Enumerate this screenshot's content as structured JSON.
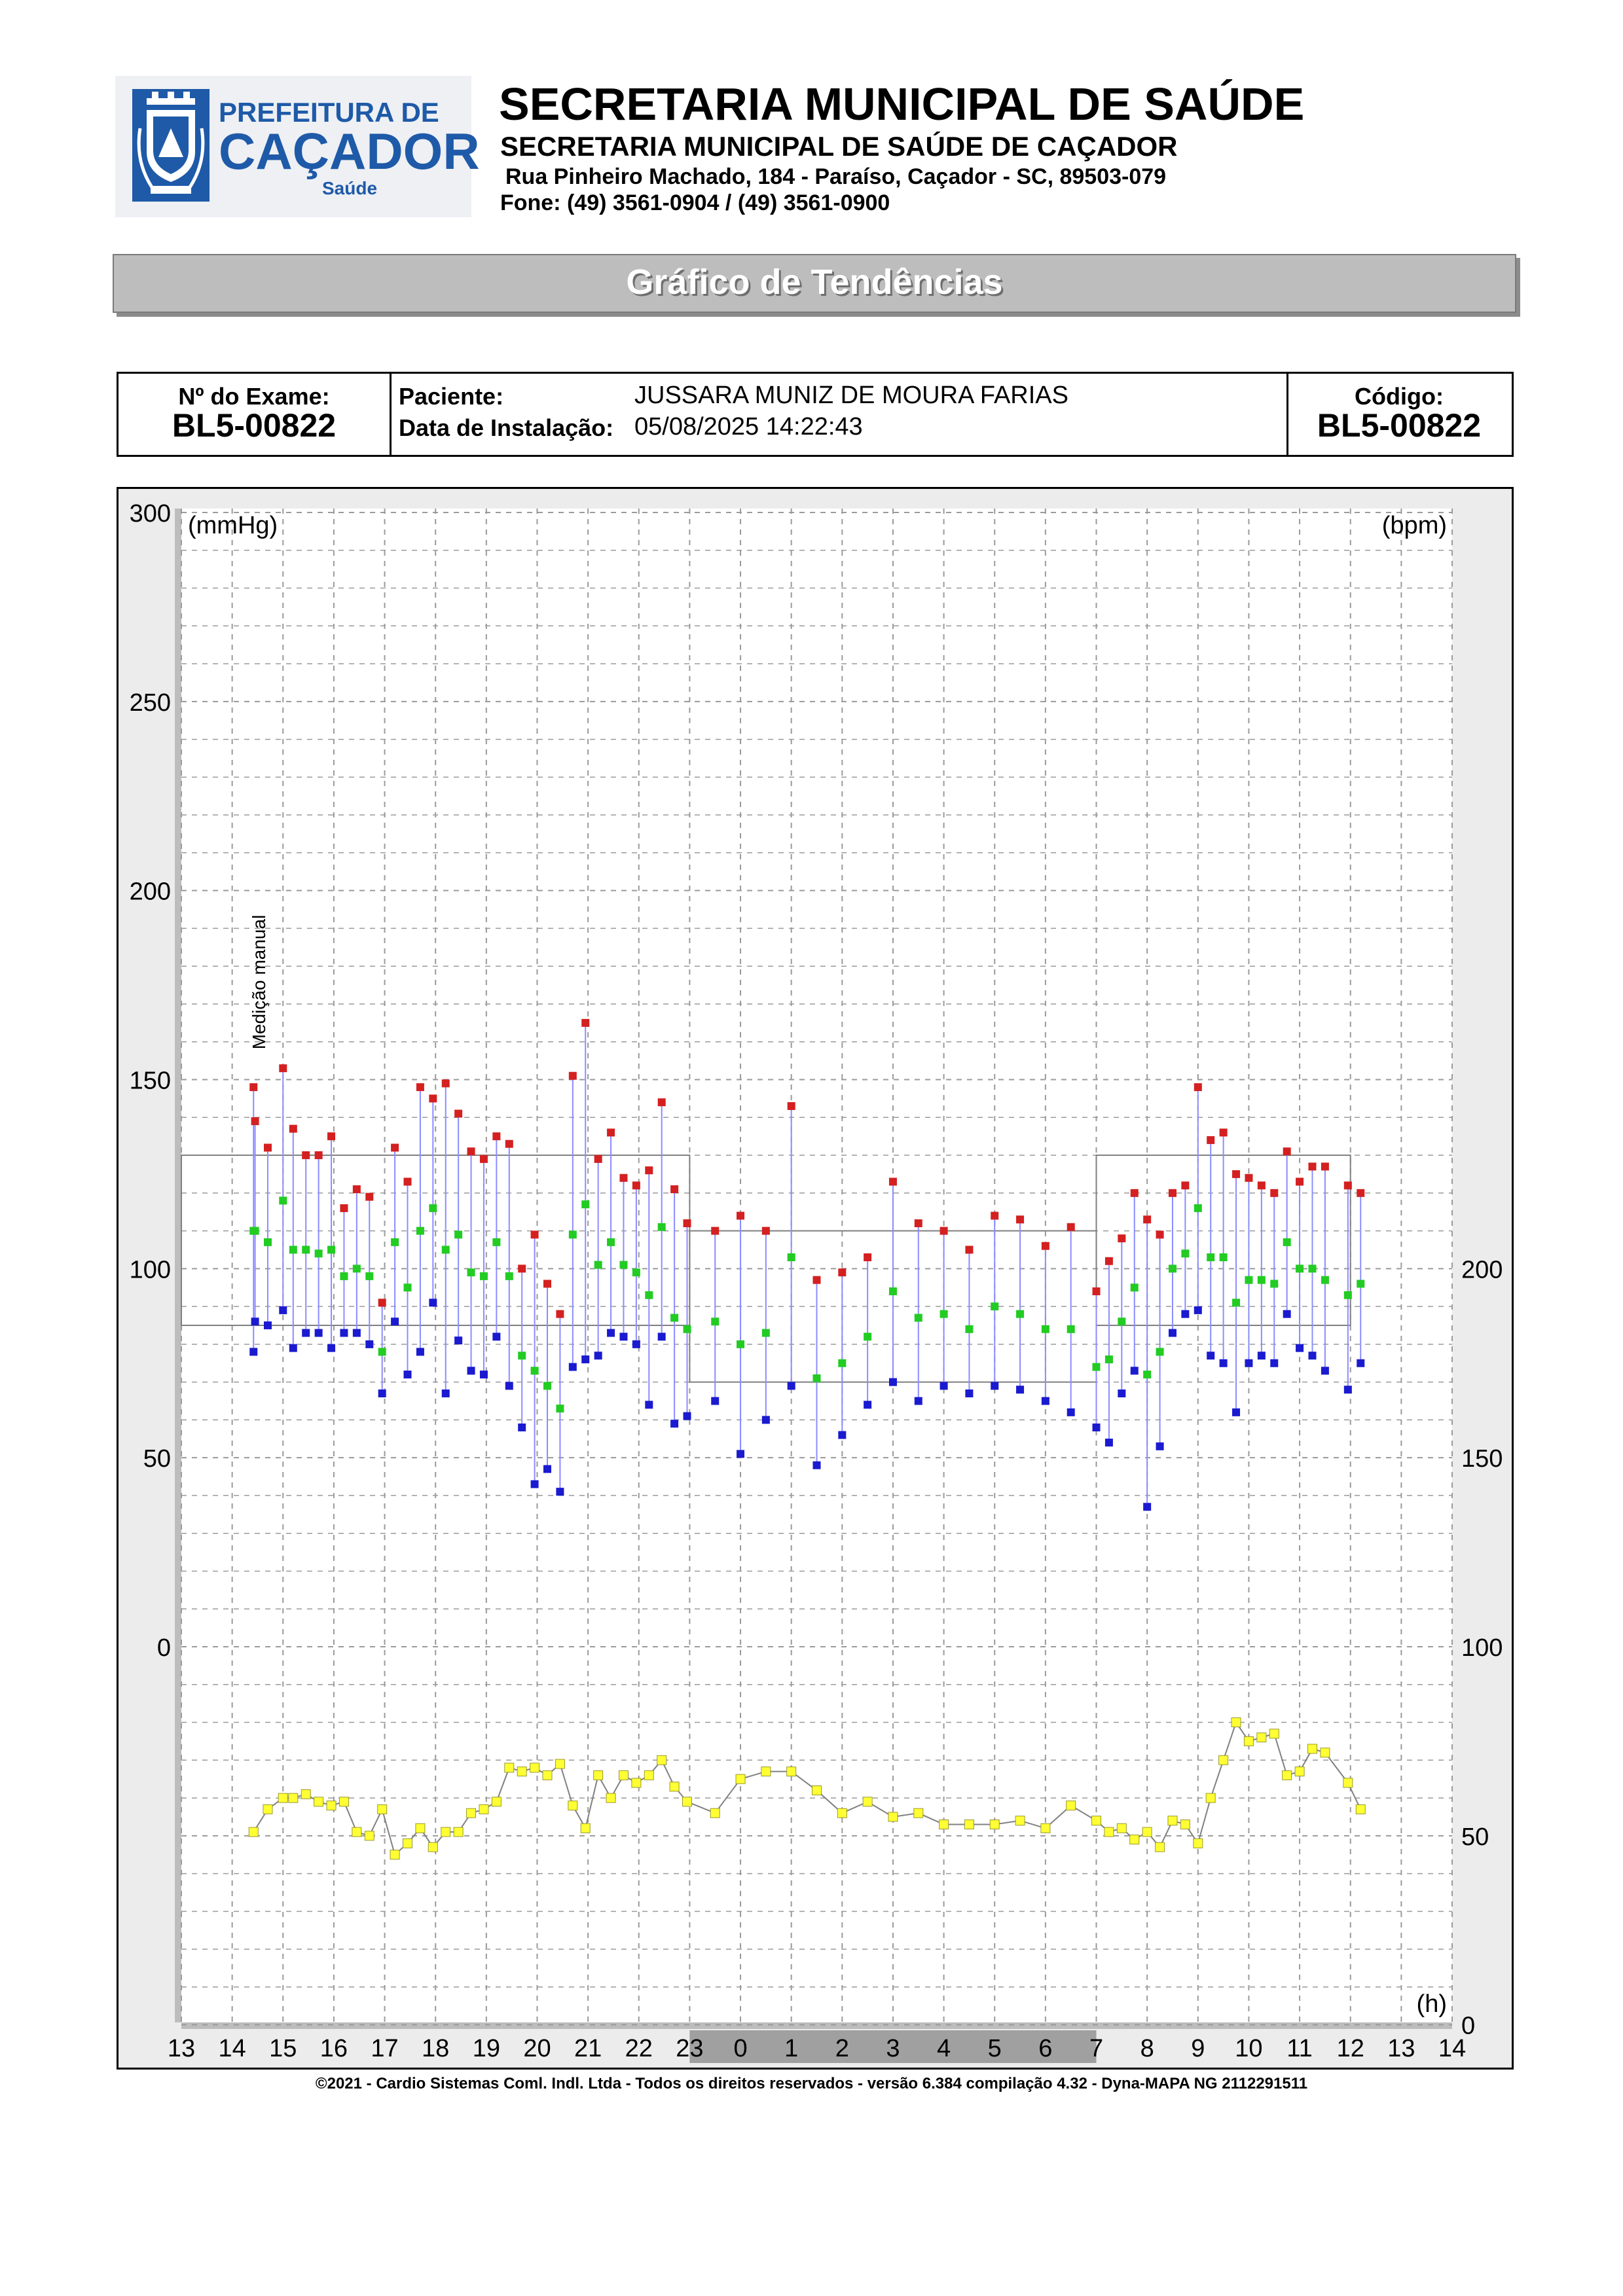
{
  "header": {
    "logo": {
      "line1": "PREFEITURA DE",
      "line2": "CAÇADOR",
      "line3": "Saúde",
      "color": "#1e5aa8"
    },
    "title": "SECRETARIA MUNICIPAL DE SAÚDE",
    "subtitle": "SECRETARIA MUNICIPAL DE SAÚDE DE CAÇADOR",
    "address": "Rua Pinheiro Machado, 184 - Paraíso, Caçador - SC, 89503-079",
    "phone": "Fone: (49) 3561-0904  / (49) 3561-0900"
  },
  "banner": {
    "title": "Gráfico de Tendências"
  },
  "exam": {
    "number_label": "Nº do Exame:",
    "number": "BL5-00822",
    "patient_label": "Paciente:",
    "patient": "JUSSARA MUNIZ DE MOURA FARIAS",
    "install_label": "Data de Instalação:",
    "install_date": "05/08/2025 14:22:43",
    "code_label": "Código:",
    "code": "BL5-00822"
  },
  "footer": {
    "copyright": "©2021 - Cardio Sistemas Coml. Indl. Ltda - Todos os direitos reservados - versão 6.384 compilação 4.32 - Dyna-MAPA NG 2112291511"
  },
  "chart_data": {
    "type": "scatter",
    "left_unit": "(mmHg)",
    "right_unit": "(bpm)",
    "x_unit": "(h)",
    "annotation": "Medição manual",
    "x_ticks": [
      "13",
      "14",
      "15",
      "16",
      "17",
      "18",
      "19",
      "20",
      "21",
      "22",
      "23",
      "0",
      "1",
      "2",
      "3",
      "4",
      "5",
      "6",
      "7",
      "8",
      "9",
      "10",
      "11",
      "12",
      "13",
      "14"
    ],
    "y_left_ticks": [
      0,
      50,
      100,
      150,
      200,
      250,
      300
    ],
    "y_left_range": [
      -100,
      300
    ],
    "y_right_ticks": [
      0,
      50,
      100,
      150,
      200
    ],
    "sleep_period": {
      "from_index": 10,
      "to_index": 18
    },
    "colors": {
      "systolic": "#d42020",
      "mean": "#22cc22",
      "diastolic": "#1a1ad0",
      "hr": "#ffff33",
      "link": "#8c8cff",
      "grid": "#9a9a9a",
      "sleep_bar": "#a0a0a0"
    },
    "limits": [
      {
        "x0": 0,
        "x1": 10,
        "systolic": 130,
        "diastolic": 85
      },
      {
        "x0": 10,
        "x1": 18,
        "systolic": 110,
        "diastolic": 70
      },
      {
        "x0": 18,
        "x1": 23,
        "systolic": 130,
        "diastolic": 85
      }
    ],
    "bp": [
      [
        1.42,
        148,
        110,
        78
      ],
      [
        1.45,
        139,
        110,
        86
      ],
      [
        1.7,
        132,
        107,
        85
      ],
      [
        2.0,
        153,
        118,
        89
      ],
      [
        2.2,
        137,
        105,
        79
      ],
      [
        2.45,
        130,
        105,
        83
      ],
      [
        2.7,
        130,
        104,
        83
      ],
      [
        2.95,
        135,
        105,
        79
      ],
      [
        3.2,
        116,
        98,
        83
      ],
      [
        3.45,
        121,
        100,
        83
      ],
      [
        3.7,
        119,
        98,
        80
      ],
      [
        3.95,
        91,
        78,
        67
      ],
      [
        4.2,
        132,
        107,
        86
      ],
      [
        4.45,
        123,
        95,
        72
      ],
      [
        4.7,
        148,
        110,
        78
      ],
      [
        4.95,
        145,
        116,
        91
      ],
      [
        5.2,
        149,
        105,
        67
      ],
      [
        5.45,
        141,
        109,
        81
      ],
      [
        5.7,
        131,
        99,
        73
      ],
      [
        5.95,
        129,
        98,
        72
      ],
      [
        6.2,
        135,
        107,
        82
      ],
      [
        6.45,
        133,
        98,
        69
      ],
      [
        6.7,
        100,
        77,
        58
      ],
      [
        6.95,
        109,
        73,
        43
      ],
      [
        7.2,
        96,
        69,
        47
      ],
      [
        7.45,
        88,
        63,
        41
      ],
      [
        7.7,
        151,
        109,
        74
      ],
      [
        7.95,
        165,
        117,
        76
      ],
      [
        8.2,
        129,
        101,
        77
      ],
      [
        8.45,
        136,
        107,
        83
      ],
      [
        8.7,
        124,
        101,
        82
      ],
      [
        8.95,
        122,
        99,
        80
      ],
      [
        9.2,
        126,
        93,
        64
      ],
      [
        9.45,
        144,
        111,
        82
      ],
      [
        9.7,
        121,
        87,
        59
      ],
      [
        9.95,
        112,
        84,
        61
      ],
      [
        10.5,
        110,
        86,
        65
      ],
      [
        11.0,
        114,
        80,
        51
      ],
      [
        11.5,
        110,
        83,
        60
      ],
      [
        12.0,
        143,
        103,
        69
      ],
      [
        12.5,
        97,
        71,
        48
      ],
      [
        13.0,
        99,
        75,
        56
      ],
      [
        13.5,
        103,
        82,
        64
      ],
      [
        14.0,
        123,
        94,
        70
      ],
      [
        14.5,
        112,
        87,
        65
      ],
      [
        15.0,
        110,
        88,
        69
      ],
      [
        15.5,
        105,
        84,
        67
      ],
      [
        16.0,
        114,
        90,
        69
      ],
      [
        16.5,
        113,
        88,
        68
      ],
      [
        17.0,
        106,
        84,
        65
      ],
      [
        17.5,
        111,
        84,
        62
      ],
      [
        18.0,
        94,
        74,
        58
      ],
      [
        18.25,
        102,
        76,
        54
      ],
      [
        18.5,
        108,
        86,
        67
      ],
      [
        18.75,
        120,
        95,
        73
      ],
      [
        19.0,
        113,
        72,
        37
      ],
      [
        19.25,
        109,
        78,
        53
      ],
      [
        19.5,
        120,
        100,
        83
      ],
      [
        19.75,
        122,
        104,
        88
      ],
      [
        20.0,
        148,
        116,
        89
      ],
      [
        20.25,
        134,
        103,
        77
      ],
      [
        20.5,
        136,
        103,
        75
      ],
      [
        20.75,
        125,
        91,
        62
      ],
      [
        21.0,
        124,
        97,
        75
      ],
      [
        21.25,
        122,
        97,
        77
      ],
      [
        21.5,
        120,
        96,
        75
      ],
      [
        21.75,
        131,
        107,
        88
      ],
      [
        22.0,
        123,
        100,
        79
      ],
      [
        22.25,
        127,
        100,
        77
      ],
      [
        22.5,
        127,
        97,
        73
      ],
      [
        22.95,
        122,
        93,
        68
      ],
      [
        23.2,
        120,
        96,
        75
      ]
    ],
    "hr": [
      [
        1.42,
        51
      ],
      [
        1.7,
        57
      ],
      [
        2.0,
        60
      ],
      [
        2.2,
        60
      ],
      [
        2.45,
        61
      ],
      [
        2.7,
        59
      ],
      [
        2.95,
        58
      ],
      [
        3.2,
        59
      ],
      [
        3.45,
        51
      ],
      [
        3.7,
        50
      ],
      [
        3.95,
        57
      ],
      [
        4.2,
        45
      ],
      [
        4.45,
        48
      ],
      [
        4.7,
        52
      ],
      [
        4.95,
        47
      ],
      [
        5.2,
        51
      ],
      [
        5.45,
        51
      ],
      [
        5.7,
        56
      ],
      [
        5.95,
        57
      ],
      [
        6.2,
        59
      ],
      [
        6.45,
        68
      ],
      [
        6.7,
        67
      ],
      [
        6.95,
        68
      ],
      [
        7.2,
        66
      ],
      [
        7.45,
        69
      ],
      [
        7.7,
        58
      ],
      [
        7.95,
        52
      ],
      [
        8.2,
        66
      ],
      [
        8.45,
        60
      ],
      [
        8.7,
        66
      ],
      [
        8.95,
        64
      ],
      [
        9.2,
        66
      ],
      [
        9.45,
        70
      ],
      [
        9.7,
        63
      ],
      [
        9.95,
        59
      ],
      [
        10.5,
        56
      ],
      [
        11.0,
        65
      ],
      [
        11.5,
        67
      ],
      [
        12.0,
        67
      ],
      [
        12.5,
        62
      ],
      [
        13.0,
        56
      ],
      [
        13.5,
        59
      ],
      [
        14.0,
        55
      ],
      [
        14.5,
        56
      ],
      [
        15.0,
        53
      ],
      [
        15.5,
        53
      ],
      [
        16.0,
        53
      ],
      [
        16.5,
        54
      ],
      [
        17.0,
        52
      ],
      [
        17.5,
        58
      ],
      [
        18.0,
        54
      ],
      [
        18.25,
        51
      ],
      [
        18.5,
        52
      ],
      [
        18.75,
        49
      ],
      [
        19.0,
        51
      ],
      [
        19.25,
        47
      ],
      [
        19.5,
        54
      ],
      [
        19.75,
        53
      ],
      [
        20.0,
        48
      ],
      [
        20.25,
        60
      ],
      [
        20.5,
        70
      ],
      [
        20.75,
        80
      ],
      [
        21.0,
        75
      ],
      [
        21.25,
        76
      ],
      [
        21.5,
        77
      ],
      [
        21.75,
        66
      ],
      [
        22.0,
        67
      ],
      [
        22.25,
        73
      ],
      [
        22.5,
        72
      ],
      [
        22.95,
        64
      ],
      [
        23.2,
        57
      ]
    ]
  }
}
